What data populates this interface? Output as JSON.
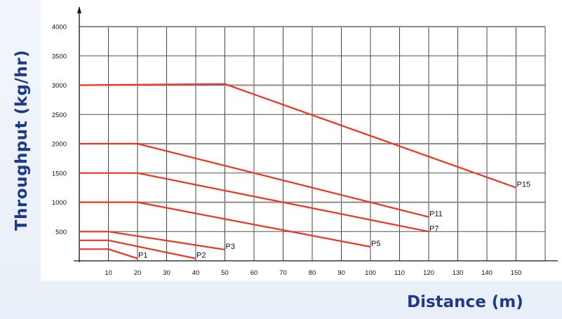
{
  "chart_data": {
    "type": "line",
    "title": "",
    "xlabel": "Distance (m)",
    "ylabel": "Throughput (kg/hr)",
    "xlim": [
      0,
      160
    ],
    "ylim": [
      0,
      4000
    ],
    "x_ticks": [
      10,
      20,
      30,
      40,
      50,
      60,
      70,
      80,
      90,
      100,
      110,
      120,
      130,
      140,
      150
    ],
    "y_ticks": [
      500,
      1000,
      1500,
      2000,
      2500,
      3000,
      3500,
      4000
    ],
    "grid": true,
    "legend": "none",
    "series": [
      {
        "name": "P1",
        "points": [
          [
            0,
            200
          ],
          [
            10,
            200
          ],
          [
            20,
            40
          ]
        ]
      },
      {
        "name": "P2",
        "points": [
          [
            0,
            350
          ],
          [
            10,
            350
          ],
          [
            40,
            40
          ]
        ]
      },
      {
        "name": "P3",
        "points": [
          [
            0,
            500
          ],
          [
            10,
            500
          ],
          [
            50,
            190
          ]
        ]
      },
      {
        "name": "P5",
        "points": [
          [
            0,
            1000
          ],
          [
            20,
            1000
          ],
          [
            100,
            240
          ]
        ]
      },
      {
        "name": "P7",
        "points": [
          [
            0,
            1500
          ],
          [
            20,
            1500
          ],
          [
            120,
            500
          ]
        ]
      },
      {
        "name": "P11",
        "points": [
          [
            0,
            2000
          ],
          [
            20,
            2000
          ],
          [
            120,
            750
          ]
        ]
      },
      {
        "name": "P15",
        "points": [
          [
            0,
            3000
          ],
          [
            50,
            3020
          ],
          [
            150,
            1250
          ]
        ]
      }
    ],
    "line_color": "#ee3322"
  }
}
